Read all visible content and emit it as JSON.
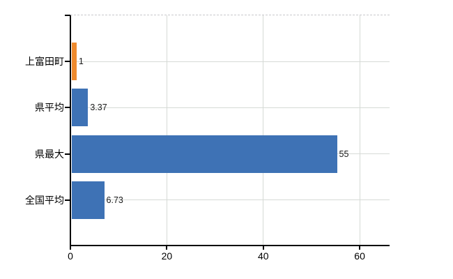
{
  "chart_data": {
    "type": "bar",
    "orientation": "horizontal",
    "title": "",
    "xlabel": "",
    "ylabel": "",
    "categories": [
      "上富田町",
      "県平均",
      "県最大",
      "全国平均"
    ],
    "values": [
      1,
      3.37,
      55,
      6.73
    ],
    "value_labels": [
      "1",
      "3.37",
      "55",
      "6.73"
    ],
    "bar_colors": [
      "#ee8a2e",
      "#3e72b5",
      "#3e72b5",
      "#3e72b5"
    ],
    "x_ticks": [
      0,
      20,
      40,
      60
    ],
    "x_tick_labels": [
      "0",
      "20",
      "40",
      "60"
    ],
    "xlim": [
      0,
      66.2
    ],
    "grid": true,
    "legend": "none",
    "colors": {
      "bar_blue": "#3e72b5",
      "bar_orange": "#ee8a2e",
      "gridline": "#d6dad6",
      "plot_top_border": "#c8c8cc",
      "axis_line": "#000000",
      "label_text": "#000000",
      "value_text": "#1a1a1a",
      "background": "#ffffff"
    }
  }
}
